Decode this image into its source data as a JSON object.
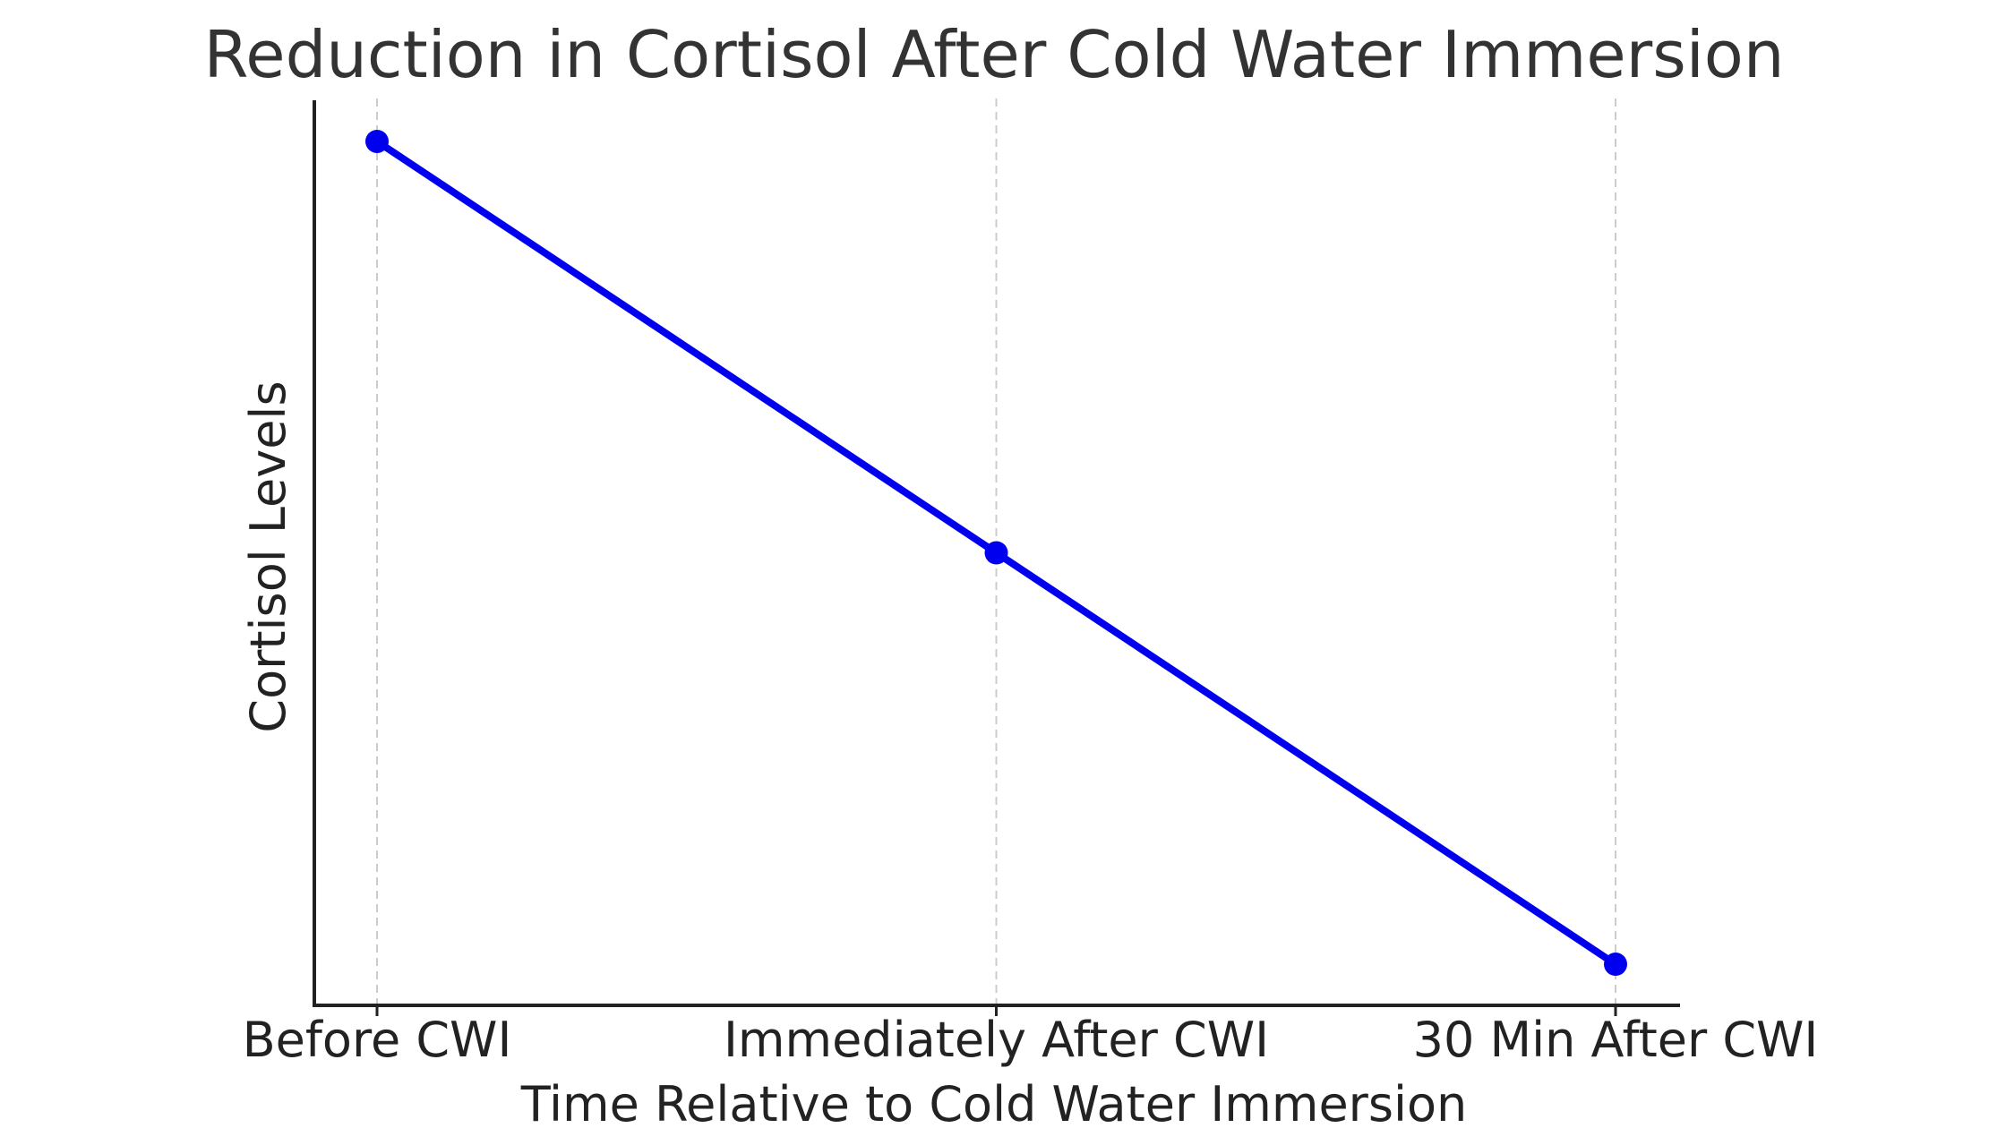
{
  "chart_data": {
    "type": "line",
    "title": "Reduction in Cortisol After Cold Water Immersion",
    "xlabel": "Time Relative to Cold Water Immersion",
    "ylabel": "Cortisol Levels",
    "categories": [
      "Before CWI",
      "Immediately After CWI",
      "30 Min After CWI"
    ],
    "series": [
      {
        "values": [
          100,
          50,
          0
        ],
        "color": "#0000ee",
        "marker": "circle"
      }
    ],
    "ylim": [
      -5,
      105
    ],
    "y_ticks_shown": false,
    "grid": "vertical dashed lines at categories",
    "grid_color": "#cccccc",
    "axis_color": "#222222"
  }
}
